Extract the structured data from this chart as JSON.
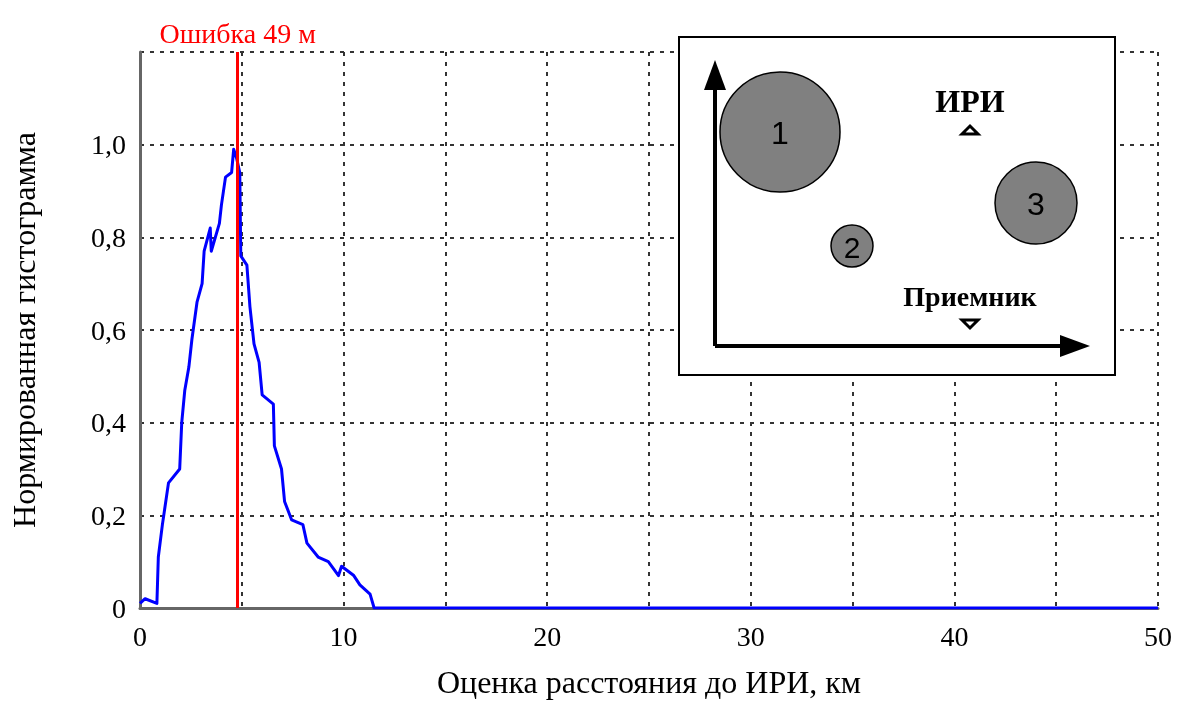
{
  "chart_data": {
    "type": "line",
    "xlabel": "Оценка расстояния до ИРИ, км",
    "ylabel": "Нормированная гистограмма",
    "color": "#0000ff",
    "x": [
      0,
      0.25,
      0.83,
      0.9,
      1.1,
      1.4,
      1.95,
      2.05,
      2.2,
      2.4,
      2.55,
      2.8,
      3.05,
      3.15,
      3.45,
      3.5,
      3.9,
      4.0,
      4.2,
      4.5,
      4.6,
      4.75,
      4.9,
      4.95,
      5.25,
      5.4,
      5.6,
      5.85,
      6.0,
      6.55,
      6.6,
      6.95,
      7.1,
      7.45,
      8.0,
      8.2,
      8.75,
      9.25,
      9.75,
      9.9,
      10.5,
      10.8,
      11.3,
      11.5,
      13.5,
      20,
      50
    ],
    "values": [
      0.01,
      0.02,
      0.01,
      0.11,
      0.18,
      0.27,
      0.3,
      0.4,
      0.47,
      0.52,
      0.58,
      0.66,
      0.7,
      0.77,
      0.82,
      0.77,
      0.83,
      0.87,
      0.93,
      0.94,
      0.99,
      0.97,
      0.94,
      0.76,
      0.74,
      0.65,
      0.57,
      0.53,
      0.46,
      0.44,
      0.35,
      0.3,
      0.23,
      0.19,
      0.18,
      0.14,
      0.11,
      0.1,
      0.07,
      0.09,
      0.07,
      0.05,
      0.03,
      0,
      0,
      0,
      0
    ],
    "xlim": [
      0,
      50
    ],
    "ylim": [
      0,
      1.2
    ],
    "xticks": [
      0,
      {
        "value": 5,
        "label": null
      },
      10,
      {
        "value": 15,
        "label": null
      },
      20,
      {
        "value": 25,
        "label": null
      },
      30,
      {
        "value": 35,
        "label": null
      },
      40,
      {
        "value": 45,
        "label": null
      },
      50
    ],
    "yticks": [
      {
        "value": 0,
        "label": "0"
      },
      {
        "value": 0.2,
        "label": "0,2"
      },
      {
        "value": 0.4,
        "label": "0,4"
      },
      {
        "value": 0.6,
        "label": "0,6"
      },
      {
        "value": 0.8,
        "label": "0,8"
      },
      {
        "value": 1.0,
        "label": "1,0"
      },
      {
        "value": 1.2,
        "label": null
      }
    ],
    "grid": true,
    "ref_lines": [
      {
        "axis": "x",
        "value": 4.8,
        "label": "Ошибка 49 м",
        "color": "#ff0000"
      }
    ],
    "annotations": [
      "ИРИ",
      "Приемник",
      "1",
      "2",
      "3"
    ]
  }
}
